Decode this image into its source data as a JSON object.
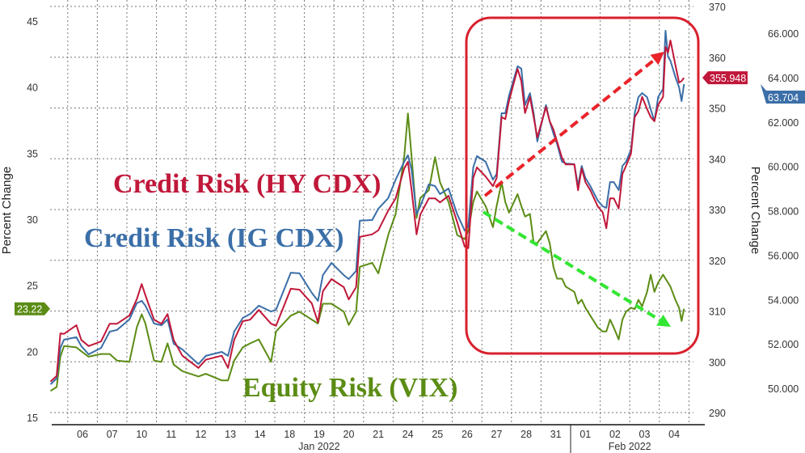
{
  "chart_data": {
    "type": "line",
    "title": "",
    "grid": true,
    "axes": {
      "left": {
        "label": "Percent Change",
        "range": [
          15,
          45
        ],
        "ticks": [
          "15",
          "20",
          "25",
          "30",
          "35",
          "40",
          "45"
        ]
      },
      "middle": {
        "label": "",
        "range": [
          290,
          370
        ],
        "ticks": [
          "290",
          "300",
          "310",
          "320",
          "330",
          "340",
          "350",
          "360",
          "370"
        ]
      },
      "right": {
        "label": "Percent Change",
        "range": [
          50,
          66
        ],
        "ticks": [
          "50.000",
          "52.000",
          "54.000",
          "56.000",
          "58.000",
          "60.000",
          "62.000",
          "64.000",
          "66.000"
        ]
      },
      "x": {
        "day_ticks": [
          "06",
          "07",
          "10",
          "11",
          "12",
          "13",
          "14",
          "18",
          "19",
          "20",
          "21",
          "24",
          "25",
          "26",
          "27",
          "28",
          "31",
          "01",
          "02",
          "03",
          "04"
        ],
        "months": [
          "Jan 2022",
          "Feb 2022"
        ]
      }
    },
    "x": [
      "2022-01-05 10:00",
      "2022-01-05 15:00",
      "2022-01-05 18:00",
      "2022-01-05 21:00",
      "2022-01-06 07:00",
      "2022-01-06 11:00",
      "2022-01-06 17:00",
      "2022-01-07 03:00",
      "2022-01-07 10:00",
      "2022-01-07 16:00",
      "2022-01-10 02:00",
      "2022-01-10 08:00",
      "2022-01-10 12:00",
      "2022-01-10 15:00",
      "2022-01-10 22:00",
      "2022-01-11 04:00",
      "2022-01-11 09:00",
      "2022-01-11 14:00",
      "2022-01-11 21:00",
      "2022-01-12 10:00",
      "2022-01-12 16:00",
      "2022-01-13 05:00",
      "2022-01-13 10:00",
      "2022-01-13 15:00",
      "2022-01-13 22:00",
      "2022-01-14 04:00",
      "2022-01-14 11:00",
      "2022-01-14 21:00",
      "2022-01-18 01:00",
      "2022-01-18 13:00",
      "2022-01-18 20:00",
      "2022-01-19 06:00",
      "2022-01-19 11:00",
      "2022-01-19 15:00",
      "2022-01-19 22:00",
      "2022-01-20 08:00",
      "2022-01-20 12:00",
      "2022-01-20 18:00",
      "2022-01-20 21:00",
      "2022-01-21 07:00",
      "2022-01-21 12:00",
      "2022-01-21 20:00",
      "2022-01-24 02:00",
      "2022-01-24 09:00",
      "2022-01-24 12:00",
      "2022-01-24 15:00",
      "2022-01-24 19:00",
      "2022-01-24 22:00",
      "2022-01-25 05:00",
      "2022-01-25 10:00",
      "2022-01-25 14:00",
      "2022-01-25 21:00",
      "2022-01-26 04:00",
      "2022-01-26 10:00",
      "2022-01-26 13:00",
      "2022-01-26 17:00",
      "2022-01-26 20:00",
      "2022-01-27 03:00",
      "2022-01-27 09:00",
      "2022-01-27 12:00",
      "2022-01-27 16:00",
      "2022-01-27 19:00",
      "2022-01-27 22:00",
      "2022-01-28 05:00",
      "2022-01-28 08:00",
      "2022-01-28 11:00",
      "2022-01-28 15:00",
      "2022-01-28 18:00",
      "2022-01-28 21:00",
      "2022-01-31 04:00",
      "2022-01-31 07:00",
      "2022-01-31 10:00",
      "2022-01-31 13:00",
      "2022-01-31 17:00",
      "2022-01-31 20:00",
      "2022-02-01 03:00",
      "2022-02-01 06:00",
      "2022-02-01 09:00",
      "2022-02-01 12:00",
      "2022-02-01 16:00",
      "2022-02-01 22:00",
      "2022-02-02 02:00",
      "2022-02-02 05:00",
      "2022-02-02 08:00",
      "2022-02-02 11:00",
      "2022-02-02 15:00",
      "2022-02-02 18:00",
      "2022-02-02 21:00",
      "2022-02-03 01:00",
      "2022-02-03 04:00",
      "2022-02-03 07:00",
      "2022-02-03 10:00",
      "2022-02-03 14:00",
      "2022-02-03 17:00",
      "2022-02-03 20:00",
      "2022-02-03 23:00",
      "2022-02-04 03:00",
      "2022-02-04 05:00",
      "2022-02-04 07:00",
      "2022-02-04 09:00",
      "2022-02-04 13:00",
      "2022-02-04 16:00",
      "2022-02-04 18:00",
      "2022-02-04 20:00"
    ],
    "series": [
      {
        "name": "Credit Risk (HY CDX)",
        "axis": "middle",
        "color": "#c0183a",
        "last_label": "355.948",
        "values": [
          296.1,
          297.2,
          305.6,
          305.5,
          307.2,
          304.3,
          303.1,
          304.0,
          307.5,
          307.5,
          309.1,
          312.3,
          315.3,
          313.1,
          308.3,
          307.5,
          309.4,
          304.3,
          301.2,
          298.8,
          300.4,
          301.2,
          298.8,
          304.3,
          308.0,
          308.3,
          310.2,
          307.5,
          307.1,
          314.4,
          314.2,
          311.5,
          307.8,
          313.9,
          316.3,
          314.7,
          312.3,
          314.7,
          324.6,
          325.1,
          325.9,
          329.8,
          332.2,
          338.1,
          339.4,
          333.8,
          325.1,
          329.0,
          332.2,
          332.2,
          331.4,
          332.7,
          327.5,
          322.7,
          322.4,
          336.2,
          338.3,
          336.5,
          334.6,
          336.2,
          348.2,
          347.8,
          351.4,
          357.7,
          355.3,
          349.0,
          352.2,
          348.2,
          344.2,
          350.2,
          347.4,
          345.8,
          343.4,
          340.2,
          338.9,
          338.9,
          333.8,
          338.1,
          335.4,
          333.8,
          330.6,
          329.5,
          326.3,
          332.2,
          332.2,
          330.2,
          337.0,
          338.6,
          341.0,
          348.2,
          349.4,
          352.2,
          349.8,
          348.2,
          347.4,
          350.6,
          352.2,
          362.0,
          360.9,
          363.3,
          358.5,
          355.0,
          355.3,
          355.948
        ]
      },
      {
        "name": "Credit Risk (IG CDX)",
        "axis": "right",
        "color": "#3b6fa8",
        "last_label": "63.704",
        "values": [
          50.18,
          50.44,
          51.82,
          52.19,
          52.3,
          51.9,
          51.53,
          51.82,
          52.55,
          52.63,
          53.1,
          53.83,
          53.94,
          53.72,
          52.92,
          52.84,
          53.1,
          52.01,
          51.75,
          51.09,
          51.46,
          51.64,
          51.46,
          52.55,
          53.17,
          53.35,
          53.72,
          53.46,
          53.54,
          55.21,
          55.18,
          54.3,
          53.94,
          55.1,
          55.65,
          55.1,
          54.92,
          55.29,
          57.55,
          57.58,
          58.09,
          58.57,
          59.4,
          60.21,
          60.5,
          59.84,
          57.84,
          58.2,
          59.19,
          59.11,
          58.75,
          59.0,
          57.84,
          57.11,
          57.29,
          59.95,
          60.46,
          60.21,
          59.4,
          59.66,
          62.39,
          62.39,
          63.19,
          64.51,
          64.4,
          62.76,
          63.3,
          62.39,
          61.12,
          62.76,
          62.03,
          61.48,
          61.01,
          60.21,
          60.13,
          60.1,
          59.11,
          60.02,
          59.48,
          59.11,
          58.46,
          58.2,
          58.13,
          59.29,
          59.29,
          58.93,
          60.02,
          60.21,
          60.75,
          62.39,
          63.12,
          63.3,
          63.12,
          62.57,
          62.03,
          63.12,
          63.49,
          66.11,
          64.94,
          64.76,
          64.03,
          63.56,
          62.94,
          63.704
        ]
      },
      {
        "name": "Equity Risk (VIX)",
        "axis": "left",
        "color": "#5b8c14",
        "last_label": "23.22",
        "values": [
          17.0,
          17.3,
          19.6,
          20.4,
          20.3,
          20.0,
          19.6,
          19.8,
          19.8,
          19.3,
          19.2,
          21.8,
          22.8,
          22.1,
          19.3,
          19.2,
          20.6,
          19.0,
          18.5,
          18.1,
          18.3,
          17.8,
          17.8,
          19.3,
          20.3,
          20.6,
          20.9,
          19.2,
          21.5,
          22.7,
          23.0,
          22.4,
          22.1,
          23.6,
          23.6,
          23.0,
          22.0,
          23.0,
          26.4,
          26.7,
          25.9,
          28.8,
          30.4,
          34.7,
          38.0,
          34.7,
          30.1,
          31.6,
          32.2,
          34.7,
          32.8,
          31.3,
          28.8,
          28.5,
          29.1,
          31.3,
          32.1,
          31.0,
          29.4,
          31.0,
          32.8,
          31.3,
          30.5,
          31.9,
          31.0,
          30.2,
          30.4,
          28.2,
          28.2,
          29.1,
          28.2,
          26.4,
          25.5,
          25.5,
          24.9,
          24.5,
          23.6,
          23.9,
          23.3,
          22.7,
          21.8,
          21.5,
          21.5,
          22.4,
          21.8,
          20.9,
          22.4,
          23.0,
          23.3,
          23.2,
          23.9,
          23.4,
          24.5,
          25.8,
          24.5,
          25.2,
          25.8,
          25.5,
          25.2,
          24.9,
          23.9,
          23.3,
          22.3,
          23.22
        ]
      }
    ],
    "annotations": {
      "hy_label": "Credit Risk (HY CDX)",
      "ig_label": "Credit Risk (IG CDX)",
      "vix_label": "Equity Risk (VIX)",
      "highlight_box_color": "#d9202e",
      "up_arrow_color": "#e8242a",
      "down_arrow_color": "#33e633"
    }
  }
}
